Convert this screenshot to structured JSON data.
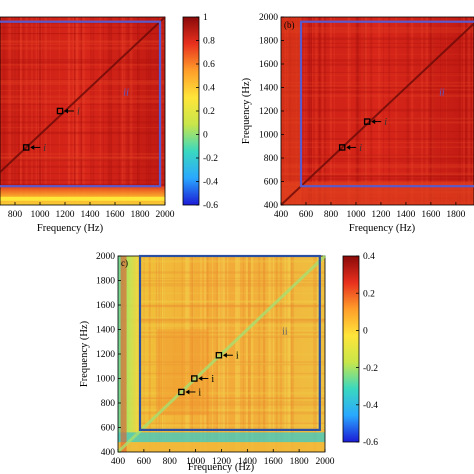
{
  "chart_data": [
    {
      "type": "heatmap",
      "panel_label": "",
      "xlabel": "Frequency (Hz)",
      "ylabel": "",
      "xlim": [
        400,
        2000
      ],
      "ylim": [
        400,
        2000
      ],
      "x_ticks": [
        "800",
        "1000",
        "1200",
        "1400",
        "1600",
        "1800",
        "2000"
      ],
      "y_ticks": [],
      "colorbar": {
        "min": -0.6,
        "max": 1,
        "ticks": [
          "1",
          "0.8",
          "0.6",
          "0.4",
          "0.2",
          "0",
          "-0.2",
          "-0.4",
          "-0.6"
        ]
      },
      "region_label": "ii",
      "region_box": {
        "x": [
          560,
          1960
        ],
        "y": [
          560,
          1960
        ]
      },
      "points": [
        {
          "label": "i",
          "x": 1160,
          "y": 1200
        },
        {
          "label": "i",
          "x": 890,
          "y": 890
        }
      ],
      "grid": false
    },
    {
      "type": "heatmap",
      "panel_label": "(b)",
      "xlabel": "Frequency (Hz)",
      "ylabel": "Frequency (Hz)",
      "xlim": [
        400,
        2000
      ],
      "ylim": [
        400,
        2000
      ],
      "x_ticks": [
        "400",
        "600",
        "800",
        "1000",
        "1200",
        "1400",
        "1600",
        "1800"
      ],
      "y_ticks": [
        "2000",
        "1800",
        "1600",
        "1400",
        "1200",
        "1000",
        "800",
        "600",
        "400"
      ],
      "region_label": "ii",
      "region_box": {
        "x": [
          560,
          1960
        ],
        "y": [
          560,
          1960
        ]
      },
      "points": [
        {
          "label": "i",
          "x": 1090,
          "y": 1110
        },
        {
          "label": "i",
          "x": 890,
          "y": 890
        }
      ],
      "grid": false
    },
    {
      "type": "heatmap",
      "panel_label": "c)",
      "xlabel": "Frequency (Hz)",
      "ylabel": "Frequency (Hz)",
      "xlim": [
        400,
        2000
      ],
      "ylim": [
        400,
        2000
      ],
      "x_ticks": [
        "400",
        "600",
        "800",
        "1000",
        "1200",
        "1400",
        "1600",
        "1800",
        "2000"
      ],
      "y_ticks": [
        "2000",
        "1800",
        "1600",
        "1400",
        "1200",
        "1000",
        "800",
        "600",
        "400"
      ],
      "colorbar": {
        "min": -0.6,
        "max": 0.4,
        "ticks": [
          "0.4",
          "0.2",
          "0",
          "-0.2",
          "-0.4",
          "-0.6"
        ]
      },
      "region_label": "ii",
      "region_box": {
        "x": [
          570,
          1960
        ],
        "y": [
          580,
          2000
        ]
      },
      "points": [
        {
          "label": "i",
          "x": 1180,
          "y": 1190
        },
        {
          "label": "i",
          "x": 990,
          "y": 1000
        },
        {
          "label": "i",
          "x": 890,
          "y": 890
        }
      ],
      "grid": false
    }
  ],
  "colors": {
    "box": "#5a5acc",
    "box_c": "#2a4ea0",
    "colormap": [
      "#1b1bd6",
      "#2aa8ff",
      "#3ad8c0",
      "#c8e64a",
      "#ffe53a",
      "#ff9e2a",
      "#e8301e",
      "#8a0a0a"
    ]
  }
}
